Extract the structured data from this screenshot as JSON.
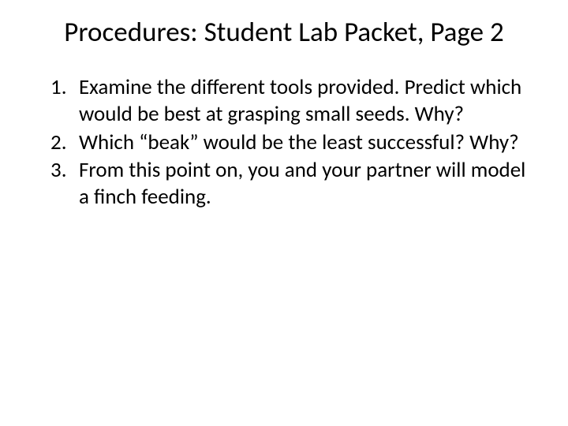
{
  "title": "Procedures: Student Lab Packet, Page 2",
  "items": [
    "Examine the different tools provided.  Predict which would be best at grasping small seeds.  Why?",
    "Which “beak” would be the least successful?  Why?",
    "From this point on, you and your partner will model a finch feeding."
  ],
  "colors": {
    "background": "#ffffff",
    "text": "#000000"
  },
  "typography": {
    "title_fontsize": 35,
    "body_fontsize": 27,
    "font_family": "Calibri"
  }
}
